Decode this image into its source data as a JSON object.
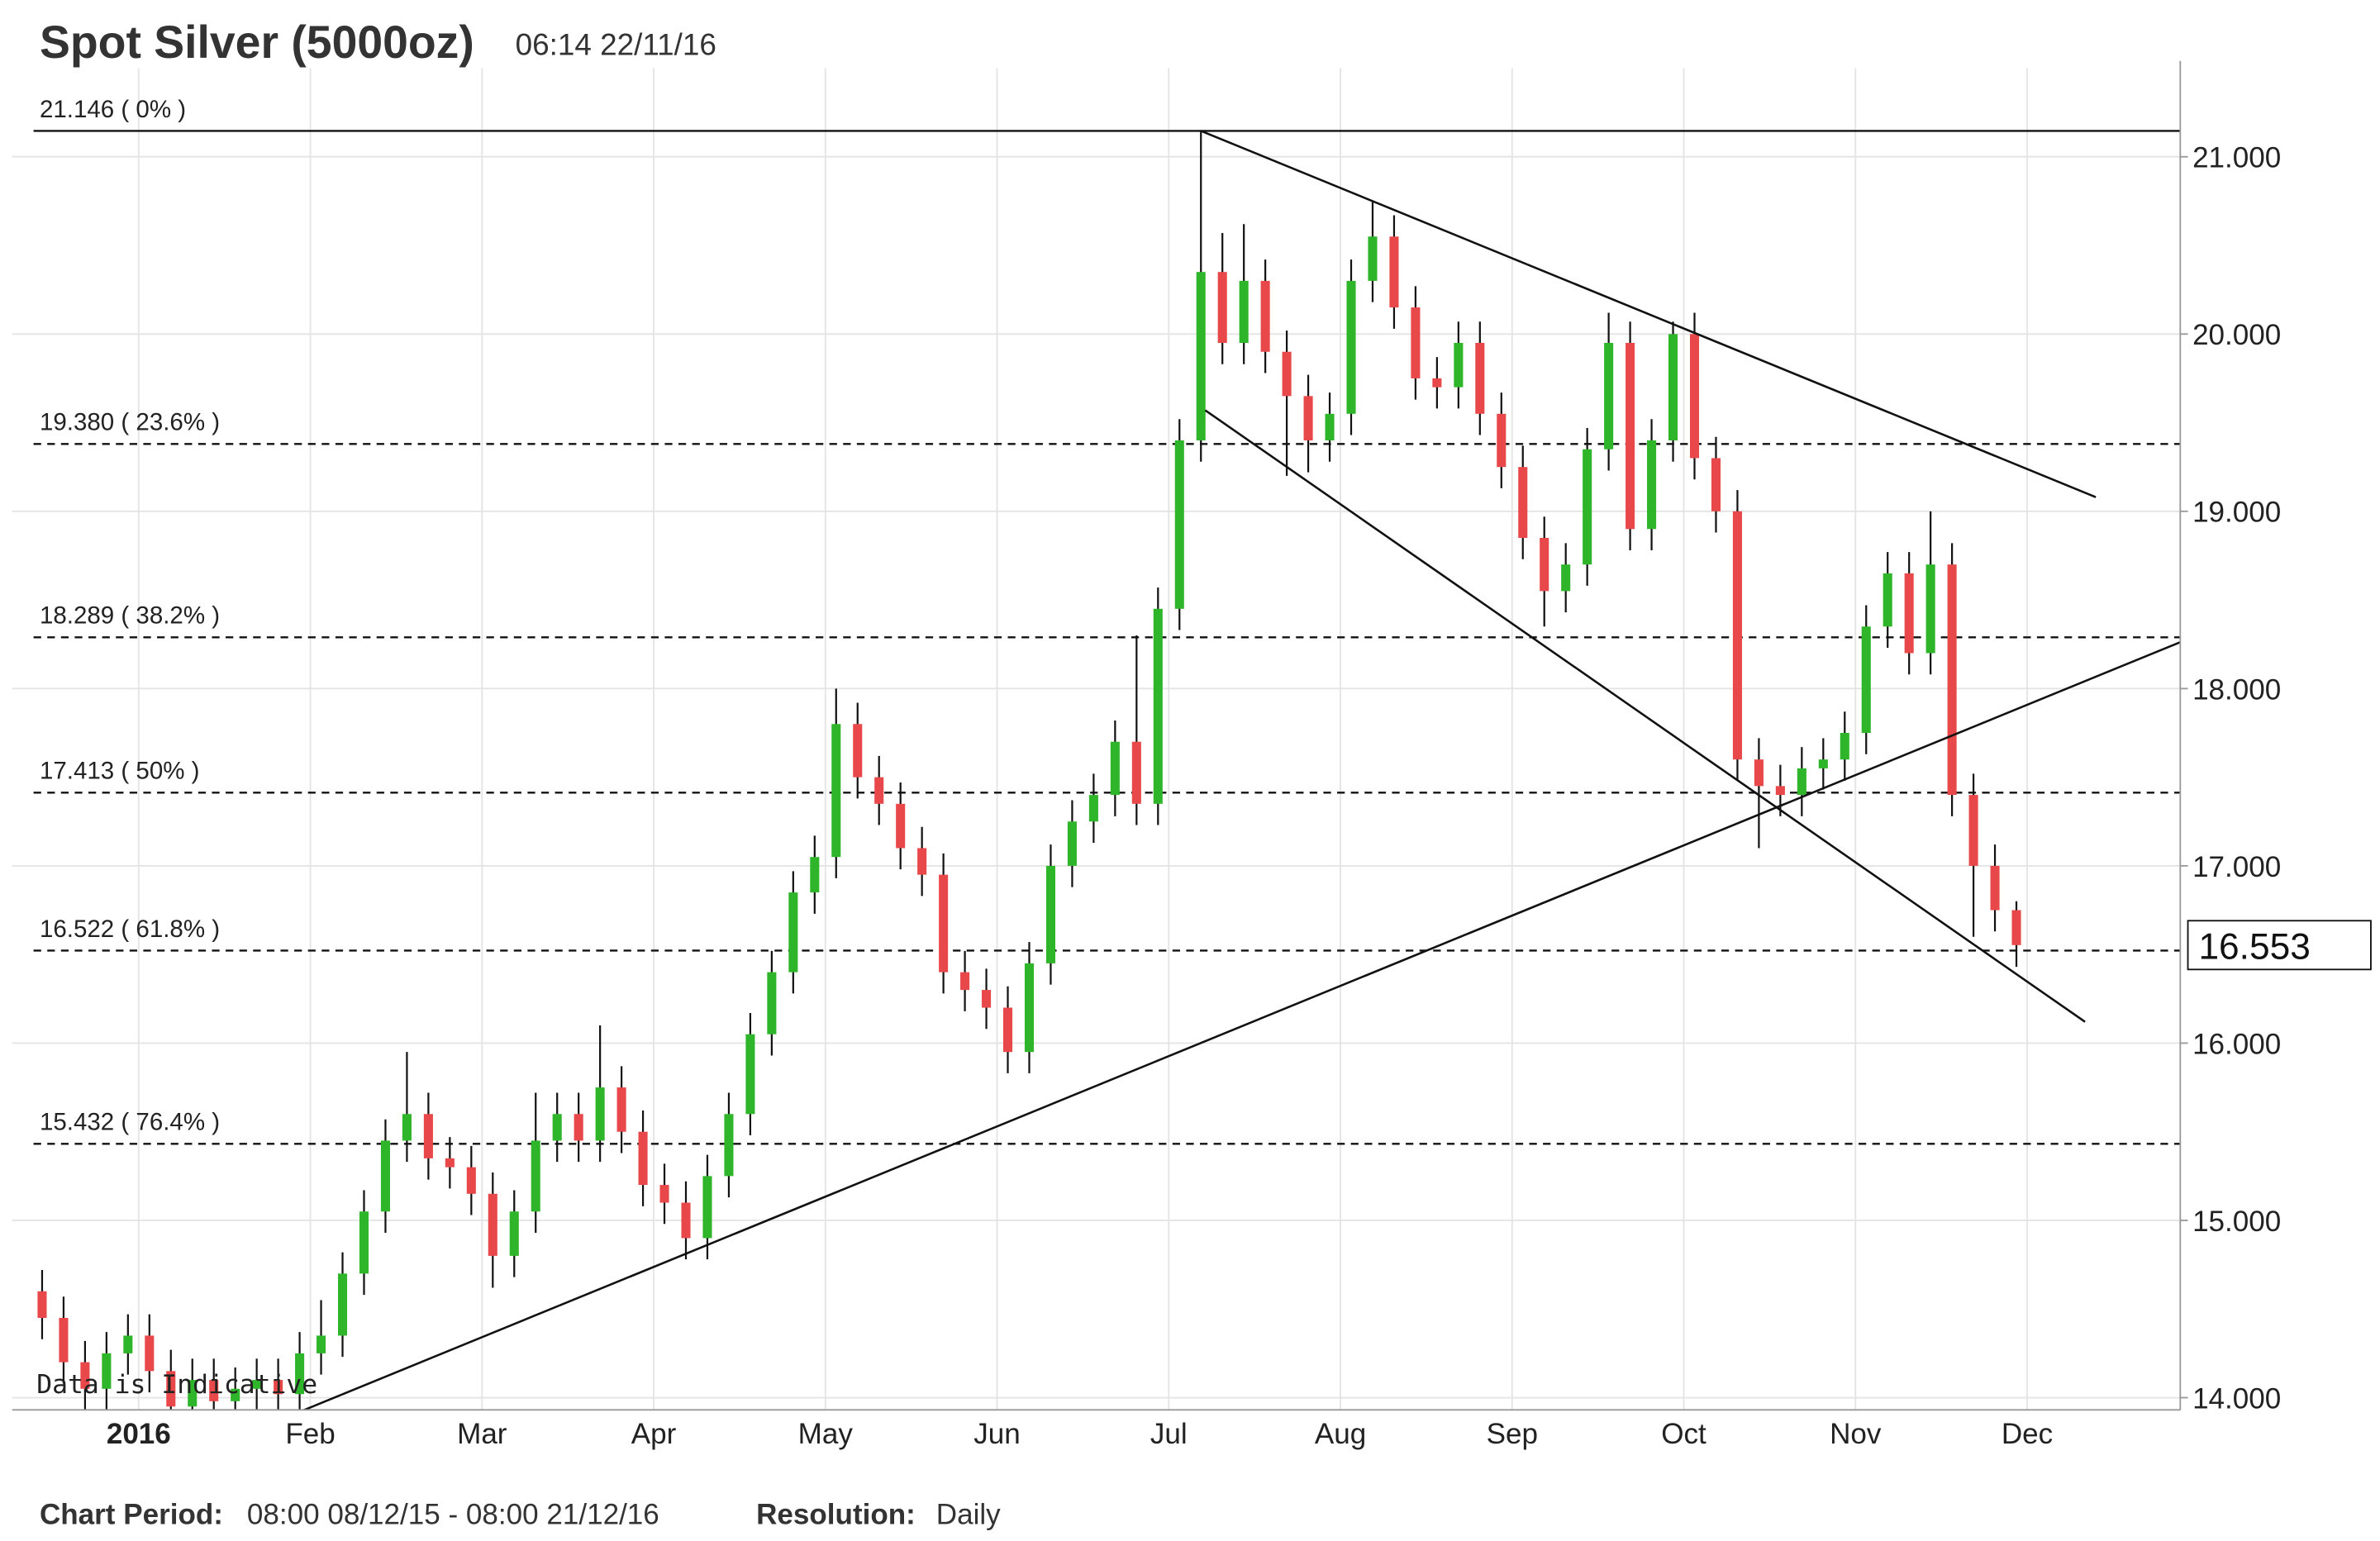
{
  "chart_data": {
    "type": "candlestick",
    "title": "Spot Silver (5000oz)",
    "timestamp": "06:14 22/11/16",
    "annotation": "Data is Indicative",
    "footer": {
      "period_label": "Chart Period:",
      "period": "08:00 08/12/15 - 08:00 21/12/16",
      "resolution_label": "Resolution:",
      "resolution": "Daily"
    },
    "categories": [
      null,
      null,
      null,
      null,
      null,
      "2016",
      null,
      null,
      null,
      null,
      null,
      null,
      null,
      "Feb",
      null,
      null,
      null,
      null,
      null,
      null,
      null,
      "Mar",
      null,
      null,
      null,
      null,
      null,
      null,
      null,
      "Apr",
      null,
      null,
      null,
      null,
      null,
      null,
      null,
      "May",
      null,
      null,
      null,
      null,
      null,
      null,
      null,
      "Jun",
      null,
      null,
      null,
      null,
      null,
      null,
      null,
      "Jul",
      null,
      null,
      null,
      null,
      null,
      null,
      null,
      "Aug",
      null,
      null,
      null,
      null,
      null,
      null,
      null,
      "Sep",
      null,
      null,
      null,
      null,
      null,
      null,
      null,
      "Oct",
      null,
      null,
      null,
      null,
      null,
      null,
      null,
      "Nov",
      null,
      null,
      null,
      null,
      null,
      null,
      null,
      "Dec"
    ],
    "open": [
      14.6,
      14.45,
      14.2,
      14.05,
      14.25,
      14.35,
      14.15,
      13.95,
      14.1,
      13.98,
      14.05,
      14.1,
      14.02,
      14.25,
      14.35,
      14.7,
      15.05,
      15.45,
      15.6,
      15.35,
      15.3,
      15.15,
      14.8,
      15.05,
      15.45,
      15.6,
      15.45,
      15.75,
      15.5,
      15.2,
      15.1,
      14.9,
      15.25,
      15.6,
      16.05,
      16.4,
      16.85,
      17.05,
      17.8,
      17.5,
      17.35,
      17.1,
      16.95,
      16.4,
      16.3,
      16.2,
      15.95,
      16.45,
      17.0,
      17.25,
      17.4,
      17.7,
      17.35,
      18.45,
      19.4,
      20.35,
      19.95,
      20.3,
      19.9,
      19.65,
      19.4,
      19.55,
      20.3,
      20.55,
      20.15,
      19.75,
      19.7,
      19.95,
      19.55,
      19.25,
      18.85,
      18.55,
      18.7,
      19.35,
      19.95,
      18.9,
      19.4,
      20.0,
      19.3,
      19.0,
      17.6,
      17.45,
      17.4,
      17.55,
      17.6,
      17.75,
      18.35,
      18.65,
      18.2,
      18.7,
      17.4,
      17.0,
      16.75,
      null
    ],
    "high": [
      14.72,
      14.57,
      14.32,
      14.37,
      14.47,
      14.47,
      14.27,
      14.22,
      14.22,
      14.17,
      14.22,
      14.22,
      14.37,
      14.55,
      14.82,
      15.17,
      15.57,
      15.95,
      15.72,
      15.47,
      15.42,
      15.27,
      15.17,
      15.72,
      15.72,
      15.72,
      16.1,
      15.87,
      15.62,
      15.32,
      15.22,
      15.37,
      15.72,
      16.17,
      16.52,
      16.97,
      17.17,
      18.0,
      17.92,
      17.62,
      17.47,
      17.22,
      17.07,
      16.52,
      16.42,
      16.32,
      16.57,
      17.12,
      17.37,
      17.52,
      17.82,
      18.3,
      18.57,
      19.52,
      21.146,
      20.57,
      20.62,
      20.42,
      20.02,
      19.77,
      19.67,
      20.42,
      20.75,
      20.67,
      20.27,
      19.87,
      20.07,
      20.07,
      19.67,
      19.37,
      18.97,
      18.82,
      19.47,
      20.12,
      20.07,
      19.52,
      20.07,
      20.12,
      19.42,
      19.12,
      17.72,
      17.57,
      17.67,
      17.72,
      17.87,
      18.47,
      18.77,
      18.77,
      19.0,
      18.82,
      17.52,
      17.12,
      16.8,
      null
    ],
    "low": [
      14.33,
      14.08,
      13.93,
      13.93,
      14.13,
      14.03,
      13.93,
      13.93,
      13.93,
      13.93,
      13.93,
      13.93,
      13.93,
      14.13,
      14.23,
      14.58,
      14.93,
      15.33,
      15.23,
      15.18,
      15.03,
      14.62,
      14.68,
      14.93,
      15.33,
      15.33,
      15.33,
      15.38,
      15.08,
      14.98,
      14.78,
      14.78,
      15.13,
      15.48,
      15.93,
      16.28,
      16.73,
      16.93,
      17.38,
      17.23,
      16.98,
      16.83,
      16.28,
      16.18,
      16.08,
      15.83,
      15.83,
      16.33,
      16.88,
      17.13,
      17.28,
      17.23,
      17.23,
      18.33,
      19.28,
      19.83,
      19.83,
      19.78,
      19.2,
      19.22,
      19.28,
      19.43,
      20.18,
      20.03,
      19.63,
      19.58,
      19.58,
      19.43,
      19.13,
      18.73,
      18.35,
      18.43,
      18.58,
      19.23,
      18.78,
      18.78,
      19.28,
      19.18,
      18.88,
      17.48,
      17.1,
      17.28,
      17.28,
      17.43,
      17.48,
      17.63,
      18.23,
      18.08,
      18.08,
      17.28,
      16.6,
      16.63,
      16.43,
      null
    ],
    "close": [
      14.45,
      14.2,
      14.05,
      14.25,
      14.35,
      14.15,
      13.95,
      14.1,
      13.98,
      14.05,
      14.1,
      14.02,
      14.25,
      14.35,
      14.7,
      15.05,
      15.45,
      15.6,
      15.35,
      15.3,
      15.15,
      14.8,
      15.05,
      15.45,
      15.6,
      15.45,
      15.75,
      15.5,
      15.2,
      15.1,
      14.9,
      15.25,
      15.6,
      16.05,
      16.4,
      16.85,
      17.05,
      17.8,
      17.5,
      17.35,
      17.1,
      16.95,
      16.4,
      16.3,
      16.2,
      15.95,
      16.45,
      17.0,
      17.25,
      17.4,
      17.7,
      17.35,
      18.45,
      19.4,
      20.35,
      19.95,
      20.3,
      19.9,
      19.65,
      19.4,
      19.55,
      20.3,
      20.55,
      20.15,
      19.75,
      19.7,
      19.95,
      19.55,
      19.25,
      18.85,
      18.55,
      18.7,
      19.35,
      19.95,
      18.9,
      19.4,
      20.0,
      19.3,
      19.0,
      17.6,
      17.45,
      17.4,
      17.55,
      17.6,
      17.75,
      18.35,
      18.65,
      18.2,
      18.7,
      17.4,
      17.0,
      16.75,
      16.553,
      null
    ],
    "up_color": "#2fb52a",
    "down_color": "#e8484a",
    "last_price": 16.553,
    "ylim": [
      13.93,
      21.5
    ],
    "yticks": [
      {
        "value": 14,
        "label": "14.000"
      },
      {
        "value": 15,
        "label": "15.000"
      },
      {
        "value": 16,
        "label": "16.000"
      },
      {
        "value": 17,
        "label": "17.000"
      },
      {
        "value": 18,
        "label": "18.000"
      },
      {
        "value": 19,
        "label": "19.000"
      },
      {
        "value": 20,
        "label": "20.000"
      },
      {
        "value": 21,
        "label": "21.000"
      }
    ],
    "grid": true,
    "fib_levels": [
      {
        "value": 21.146,
        "label": "21.146 ( 0% )"
      },
      {
        "value": 19.38,
        "label": "19.380 ( 23.6% )"
      },
      {
        "value": 18.289,
        "label": "18.289 ( 38.2% )"
      },
      {
        "value": 17.413,
        "label": "17.413 ( 50% )"
      },
      {
        "value": 16.522,
        "label": "16.522 ( 61.8% )"
      },
      {
        "value": 15.432,
        "label": "15.432 ( 76.4% )"
      }
    ],
    "trendlines": [
      {
        "x": [
          54,
          95.7
        ],
        "y": [
          21.146,
          19.08
        ]
      },
      {
        "x": [
          54.2,
          95.2
        ],
        "y": [
          19.57,
          16.12
        ]
      },
      {
        "x": [
          12.2,
          99.8
        ],
        "y": [
          13.93,
          18.27
        ]
      }
    ]
  }
}
